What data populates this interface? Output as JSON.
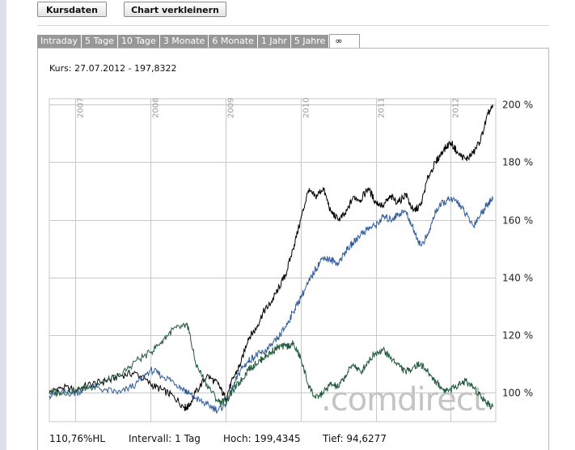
{
  "toolbar": {
    "kursdaten_label": "Kursdaten",
    "chart_label": "Chart verkleinern"
  },
  "tabs": [
    {
      "label": "Intraday"
    },
    {
      "label": "5 Tage"
    },
    {
      "label": "10 Tage"
    },
    {
      "label": "3 Monate"
    },
    {
      "label": "6 Monate"
    },
    {
      "label": "1 Jahr"
    },
    {
      "label": "5 Jahre"
    },
    {
      "label": "∞",
      "active": true
    }
  ],
  "kurs_label": "Kurs: 27.07.2012 - 197,8322",
  "stats": {
    "hl": "110,76%HL",
    "intervall": "Intervall: 1 Tag",
    "hoch": "Hoch: 199,4345",
    "tief": "Tief: 94,6277"
  },
  "watermark": ".comdirect",
  "colors": {
    "main_series": "#000000",
    "blue_series": "#2f5b9c",
    "green_series": "#1f5a3a",
    "grid": "#c8c8c8"
  },
  "chart_data": {
    "type": "line",
    "x_tick_labels": [
      "2007",
      "2008",
      "2009",
      "2010",
      "2011",
      "2012"
    ],
    "y_tick_labels": [
      "100 %",
      "120 %",
      "140 %",
      "160 %",
      "180 %",
      "200 %"
    ],
    "y_ticks": [
      100,
      120,
      140,
      160,
      180,
      200
    ],
    "ylim": [
      90,
      202
    ],
    "xlim": [
      2006.65,
      2012.6
    ],
    "grid": true,
    "series": [
      {
        "color": "#000000",
        "x": [
          2006.65,
          2006.8,
          2007.0,
          2007.2,
          2007.4,
          2007.6,
          2007.8,
          2008.0,
          2008.15,
          2008.3,
          2008.45,
          2008.5,
          2008.6,
          2008.75,
          2008.9,
          2009.0,
          2009.1,
          2009.2,
          2009.3,
          2009.4,
          2009.5,
          2009.6,
          2009.7,
          2009.8,
          2009.9,
          2010.0,
          2010.1,
          2010.2,
          2010.3,
          2010.4,
          2010.5,
          2010.6,
          2010.7,
          2010.8,
          2010.9,
          2011.0,
          2011.1,
          2011.2,
          2011.3,
          2011.4,
          2011.5,
          2011.6,
          2011.7,
          2011.8,
          2011.9,
          2012.0,
          2012.1,
          2012.2,
          2012.3,
          2012.4,
          2012.5,
          2012.56
        ],
        "y": [
          100,
          102,
          101,
          103,
          104,
          106,
          107,
          103,
          101,
          99,
          95,
          95,
          100,
          106,
          103,
          98,
          105,
          110,
          119,
          122,
          128,
          131,
          136,
          141,
          150,
          160,
          170,
          168,
          171,
          163,
          160,
          162,
          168,
          167,
          171,
          166,
          165,
          168,
          166,
          169,
          163,
          165,
          175,
          180,
          184,
          187,
          183,
          181,
          183,
          188,
          197,
          199
        ]
      },
      {
        "color": "#2f5b9c",
        "x": [
          2006.65,
          2006.8,
          2007.0,
          2007.2,
          2007.4,
          2007.6,
          2007.8,
          2008.0,
          2008.15,
          2008.3,
          2008.45,
          2008.5,
          2008.6,
          2008.75,
          2008.9,
          2009.0,
          2009.1,
          2009.2,
          2009.3,
          2009.4,
          2009.5,
          2009.6,
          2009.7,
          2009.8,
          2009.9,
          2010.0,
          2010.1,
          2010.2,
          2010.3,
          2010.4,
          2010.5,
          2010.6,
          2010.7,
          2010.8,
          2010.9,
          2011.0,
          2011.1,
          2011.2,
          2011.3,
          2011.4,
          2011.5,
          2011.6,
          2011.7,
          2011.8,
          2011.9,
          2012.0,
          2012.1,
          2012.2,
          2012.3,
          2012.4,
          2012.5,
          2012.56
        ],
        "y": [
          99,
          100,
          100,
          102,
          101,
          100,
          103,
          108,
          106,
          104,
          101,
          100,
          98,
          96,
          94,
          96,
          102,
          108,
          111,
          113,
          114,
          116,
          119,
          123,
          128,
          133,
          138,
          143,
          147,
          146,
          145,
          149,
          152,
          155,
          157,
          158,
          161,
          160,
          162,
          163,
          157,
          151,
          155,
          163,
          166,
          167,
          166,
          162,
          158,
          162,
          166,
          167
        ]
      },
      {
        "color": "#1f5a3a",
        "x": [
          2006.65,
          2006.8,
          2007.0,
          2007.2,
          2007.4,
          2007.6,
          2007.8,
          2008.0,
          2008.15,
          2008.3,
          2008.45,
          2008.5,
          2008.6,
          2008.75,
          2008.9,
          2009.0,
          2009.1,
          2009.2,
          2009.3,
          2009.4,
          2009.5,
          2009.6,
          2009.7,
          2009.8,
          2009.9,
          2010.0,
          2010.1,
          2010.2,
          2010.3,
          2010.4,
          2010.5,
          2010.6,
          2010.7,
          2010.8,
          2010.9,
          2011.0,
          2011.1,
          2011.2,
          2011.3,
          2011.4,
          2011.5,
          2011.6,
          2011.7,
          2011.8,
          2011.9,
          2012.0,
          2012.1,
          2012.2,
          2012.3,
          2012.4,
          2012.5,
          2012.56
        ],
        "y": [
          100,
          100,
          101,
          102,
          104,
          106,
          111,
          114,
          118,
          122,
          123,
          123,
          110,
          103,
          97,
          97,
          101,
          104,
          108,
          110,
          112,
          114,
          116,
          116,
          117,
          112,
          103,
          98,
          100,
          103,
          102,
          106,
          110,
          107,
          111,
          114,
          115,
          112,
          110,
          107,
          109,
          110,
          107,
          104,
          101,
          101,
          103,
          104,
          102,
          99,
          96,
          95
        ]
      }
    ]
  }
}
